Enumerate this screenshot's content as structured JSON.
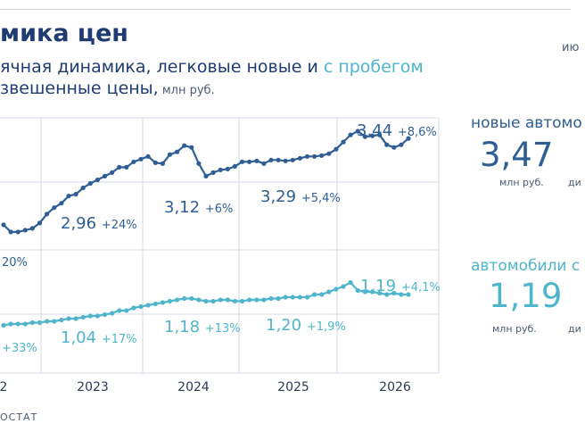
{
  "header": {
    "title": "мика цен",
    "subtitle_part1": "ячная динамика, легковые новые и ",
    "subtitle_accent": "с пробегом",
    "subtitle2_main": "звешенные цены,",
    "subtitle2_unit": " млн руб.",
    "corner_label": "ию"
  },
  "source": "ОСТАТ",
  "colors": {
    "new": "#2f5d95",
    "used": "#4fb5cc",
    "title": "#1f3b73",
    "grid": "#d3dbe7"
  },
  "chart_data": {
    "type": "line",
    "x_ticks": [
      "2",
      "2023",
      "2024",
      "2025",
      "2026"
    ],
    "series": [
      {
        "key": "new",
        "values": [
          2.66,
          2.58,
          2.58,
          2.6,
          2.62,
          2.68,
          2.78,
          2.85,
          2.9,
          2.98,
          3.0,
          3.07,
          3.12,
          3.16,
          3.2,
          3.24,
          3.3,
          3.3,
          3.36,
          3.39,
          3.42,
          3.35,
          3.34,
          3.44,
          3.47,
          3.54,
          3.52,
          3.34,
          3.2,
          3.24,
          3.27,
          3.28,
          3.31,
          3.36,
          3.36,
          3.37,
          3.34,
          3.38,
          3.38,
          3.37,
          3.38,
          3.4,
          3.42,
          3.42,
          3.43,
          3.45,
          3.5,
          3.58,
          3.66,
          3.7,
          3.64,
          3.65,
          3.66,
          3.55,
          3.52,
          3.55,
          3.62
        ]
      },
      {
        "key": "used",
        "values": [
          0.99,
          1.0,
          1.0,
          1.0,
          1.01,
          1.01,
          1.02,
          1.02,
          1.03,
          1.04,
          1.04,
          1.05,
          1.06,
          1.06,
          1.07,
          1.08,
          1.1,
          1.1,
          1.12,
          1.13,
          1.14,
          1.15,
          1.16,
          1.17,
          1.18,
          1.19,
          1.19,
          1.18,
          1.17,
          1.17,
          1.18,
          1.18,
          1.17,
          1.17,
          1.18,
          1.18,
          1.18,
          1.19,
          1.19,
          1.2,
          1.2,
          1.2,
          1.2,
          1.22,
          1.22,
          1.24,
          1.26,
          1.28,
          1.31,
          1.25,
          1.24,
          1.24,
          1.23,
          1.22,
          1.23,
          1.22,
          1.22
        ]
      }
    ],
    "annotations": [
      {
        "series": "new",
        "value": "2,96",
        "change": "+24%"
      },
      {
        "series": "new",
        "value": "3,12",
        "change": "+6%"
      },
      {
        "series": "new",
        "value": "3,29",
        "change": "+5,4%"
      },
      {
        "series": "new",
        "value": "3,44",
        "change": "+8,6%"
      },
      {
        "series": "new",
        "value": "",
        "change": "20%"
      },
      {
        "series": "used",
        "value": "",
        "change": "+33%"
      },
      {
        "series": "used",
        "value": "1,04",
        "change": "+17%"
      },
      {
        "series": "used",
        "value": "1,18",
        "change": "+13%"
      },
      {
        "series": "used",
        "value": "1,20",
        "change": "+1,9%"
      },
      {
        "series": "used",
        "value": "1,19",
        "change": "+4,1%"
      }
    ]
  },
  "panels": {
    "new": {
      "label": "новые автомо",
      "value": "3,47",
      "unit": "млн руб.",
      "cut": "ди"
    },
    "used": {
      "label": "автомобили с",
      "value": "1,19",
      "unit": "млн руб.",
      "cut": "ди"
    }
  }
}
